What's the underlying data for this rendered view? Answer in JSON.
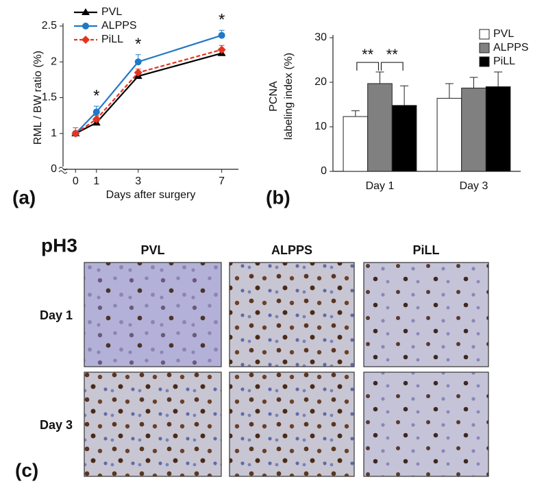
{
  "chart_data": [
    {
      "type": "line",
      "panel_label": "(a)",
      "xlabel": "Days after surgery",
      "ylabel": "RML / BW ratio (%)",
      "x": [
        0,
        1,
        3,
        7
      ],
      "xlim": [
        -0.6,
        7.8
      ],
      "xticks": [
        0,
        1,
        3,
        7
      ],
      "ylim": [
        0,
        2.5
      ],
      "yticks": [
        0,
        1,
        1.5,
        2,
        2.5
      ],
      "axis_break": [
        0,
        0.5
      ],
      "grid": false,
      "legend": "top-left",
      "series": [
        {
          "name": "PVL",
          "color": "#000000",
          "marker": "triangle",
          "dash": "solid",
          "values": [
            1.0,
            1.15,
            1.8,
            2.12
          ],
          "errors": [
            0.02,
            0.02,
            0.03,
            0.03
          ]
        },
        {
          "name": "ALPPS",
          "color": "#1f78c8",
          "marker": "circle",
          "dash": "solid",
          "values": [
            1.0,
            1.3,
            2.0,
            2.37
          ],
          "errors": [
            0.03,
            0.08,
            0.1,
            0.07
          ]
        },
        {
          "name": "PiLL",
          "color": "#e8321e",
          "marker": "diamond",
          "dash": "dashed",
          "values": [
            1.0,
            1.2,
            1.85,
            2.17
          ],
          "errors": [
            0.08,
            0.05,
            0.05,
            0.06
          ]
        }
      ],
      "significance": [
        {
          "x": 1,
          "label": "*"
        },
        {
          "x": 3,
          "label": "*"
        },
        {
          "x": 7,
          "label": "*"
        }
      ]
    },
    {
      "type": "bar",
      "panel_label": "(b)",
      "ylabel": [
        "PCNA",
        "labeling index (%)"
      ],
      "categories": [
        "Day 1",
        "Day 3"
      ],
      "ylim": [
        0,
        30
      ],
      "yticks": [
        0,
        10,
        20,
        30
      ],
      "grid": false,
      "legend": "top-right",
      "series": [
        {
          "name": "PVL",
          "color": "#ffffff",
          "values": [
            12.3,
            16.4
          ],
          "errors": [
            1.3,
            3.3
          ]
        },
        {
          "name": "ALPPS",
          "color": "#808080",
          "values": [
            19.7,
            18.7
          ],
          "errors": [
            2.6,
            2.4
          ]
        },
        {
          "name": "PiLL",
          "color": "#000000",
          "values": [
            14.8,
            19.0
          ],
          "errors": [
            4.4,
            3.3
          ]
        }
      ],
      "brackets": [
        {
          "category": 0,
          "from": 0,
          "to": 1,
          "label": "**"
        },
        {
          "category": 0,
          "from": 1,
          "to": 2,
          "label": "**"
        }
      ]
    }
  ],
  "micrographs": {
    "panel_label": "(c)",
    "title": "pH3",
    "columns": [
      "PVL",
      "ALPPS",
      "PiLL"
    ],
    "rows": [
      "Day 1",
      "Day 3"
    ]
  }
}
